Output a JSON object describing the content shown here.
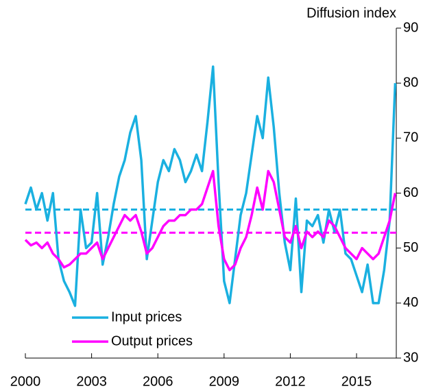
{
  "chart_data": {
    "type": "line",
    "y_axis_label": "Diffusion index",
    "y_axis_side": "right",
    "legend": "lower left",
    "x": [
      2000,
      2000.25,
      2000.5,
      2000.75,
      2001,
      2001.25,
      2001.5,
      2001.75,
      2002,
      2002.25,
      2002.5,
      2002.75,
      2003,
      2003.25,
      2003.5,
      2003.75,
      2004,
      2004.25,
      2004.5,
      2004.75,
      2005,
      2005.25,
      2005.5,
      2005.75,
      2006,
      2006.25,
      2006.5,
      2006.75,
      2007,
      2007.25,
      2007.5,
      2007.75,
      2008,
      2008.25,
      2008.5,
      2008.75,
      2009,
      2009.25,
      2009.5,
      2009.75,
      2010,
      2010.25,
      2010.5,
      2010.75,
      2011,
      2011.25,
      2011.5,
      2011.75,
      2012,
      2012.25,
      2012.5,
      2012.75,
      2013,
      2013.25,
      2013.5,
      2013.75,
      2014,
      2014.25,
      2014.5,
      2014.75,
      2015,
      2015.25,
      2015.5,
      2015.75,
      2016,
      2016.25,
      2016.5,
      2016.75
    ],
    "series": [
      {
        "name": "Input prices",
        "color": "#1ab0e0",
        "values": [
          58,
          61,
          57,
          60,
          55,
          60,
          48,
          44,
          42,
          39.5,
          57,
          50,
          51,
          60,
          47,
          52,
          58,
          63,
          66,
          71,
          74,
          66,
          48,
          55,
          62,
          66,
          64,
          68,
          66,
          62,
          64,
          67,
          64,
          73,
          83,
          62,
          44,
          40,
          48,
          56,
          60,
          67,
          74,
          70,
          81,
          72,
          60,
          51,
          46,
          59,
          42,
          55,
          54,
          56,
          51,
          57,
          53,
          57,
          49,
          48,
          45,
          42,
          47,
          40,
          40,
          46,
          55,
          80
        ]
      },
      {
        "name": "Output prices",
        "color": "#ff00ff",
        "values": [
          51.5,
          50.5,
          51,
          50,
          51,
          49,
          48,
          46.5,
          47,
          48,
          49,
          49,
          50,
          51,
          48,
          50,
          52,
          54,
          56,
          55,
          56,
          53,
          49,
          50,
          52,
          54,
          55,
          55,
          56,
          56,
          57,
          57,
          58,
          61,
          64,
          54,
          48,
          46,
          47,
          50,
          52,
          56,
          61,
          57,
          64,
          62,
          57,
          52,
          51,
          54,
          50,
          53,
          52,
          53,
          52,
          55,
          54,
          52,
          50,
          49,
          48,
          50,
          49,
          48,
          49,
          52,
          55,
          60
        ]
      }
    ],
    "reference_lines": [
      {
        "value": 57,
        "color": "#1ab0e0"
      },
      {
        "value": 52.8,
        "color": "#ff00ff"
      }
    ],
    "xlim": [
      2000,
      2016.8
    ],
    "xticks": [
      2000,
      2003,
      2006,
      2009,
      2012,
      2015
    ],
    "ylim": [
      30,
      90
    ],
    "yticks": [
      30,
      40,
      50,
      60,
      70,
      80,
      90
    ]
  }
}
